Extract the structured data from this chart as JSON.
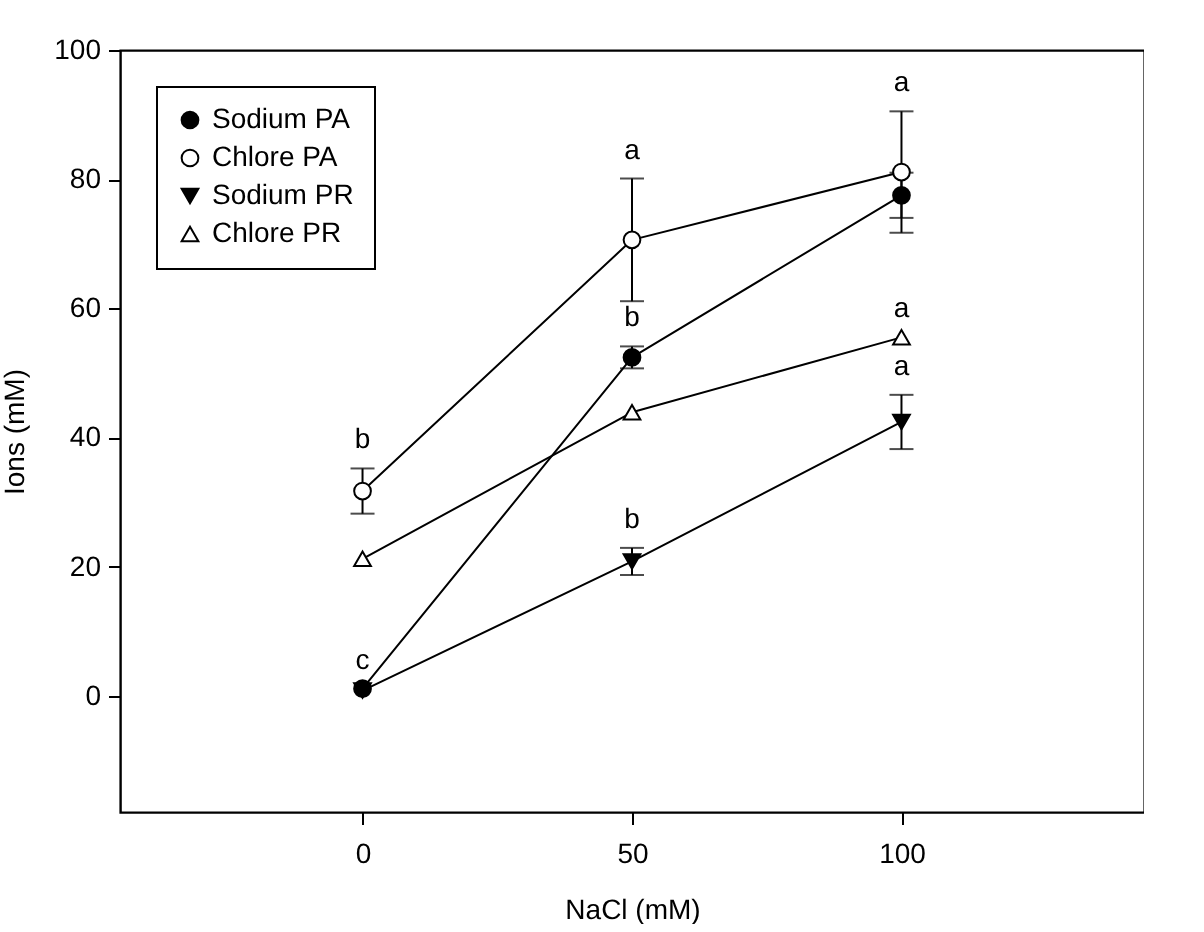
{
  "chart_data": {
    "type": "line",
    "xlabel": "NaCl (mM)",
    "ylabel": "Ions (mM)",
    "x": [
      0,
      50,
      100
    ],
    "xlim": [
      -45,
      145
    ],
    "xticks": [
      0,
      50,
      100
    ],
    "ylim": [
      -18,
      100
    ],
    "yticks": [
      0,
      20,
      40,
      60,
      80,
      100
    ],
    "grid": false,
    "legend": "top left",
    "line_style": "solid",
    "series": [
      {
        "name": "Sodium PA",
        "color": "#000000",
        "marker": "circle",
        "values": [
          1.1,
          52.4,
          77.5
        ],
        "errors": [
          null,
          1.7,
          3.5
        ]
      },
      {
        "name": "Chlore PA",
        "color": "#000000",
        "marker": "circle-open",
        "values": [
          31.7,
          70.6,
          81.1
        ],
        "errors": [
          3.5,
          9.5,
          9.4
        ]
      },
      {
        "name": "Sodium PR",
        "color": "#000000",
        "marker": "triangle-down",
        "values": [
          0.8,
          20.8,
          42.4
        ],
        "errors": [
          null,
          2.1,
          4.2
        ]
      },
      {
        "name": "Chlore PR",
        "color": "#000000",
        "marker": "triangle-open",
        "values": [
          21.2,
          43.9,
          55.5
        ],
        "errors": [
          null,
          null,
          null
        ]
      }
    ],
    "annotations": [
      {
        "text": "b",
        "x": 0,
        "y": 31.7
      },
      {
        "text": "c",
        "x": 0,
        "y": 1.1
      },
      {
        "text": "a",
        "x": 50,
        "y": 70.6
      },
      {
        "text": "b",
        "x": 50,
        "y": 52.4
      },
      {
        "text": "b",
        "x": 50,
        "y": 20.8
      },
      {
        "text": "a",
        "x": 100,
        "y": 81.1
      },
      {
        "text": "a",
        "x": 100,
        "y": 55.5
      },
      {
        "text": "a",
        "x": 100,
        "y": 42.4
      }
    ]
  }
}
